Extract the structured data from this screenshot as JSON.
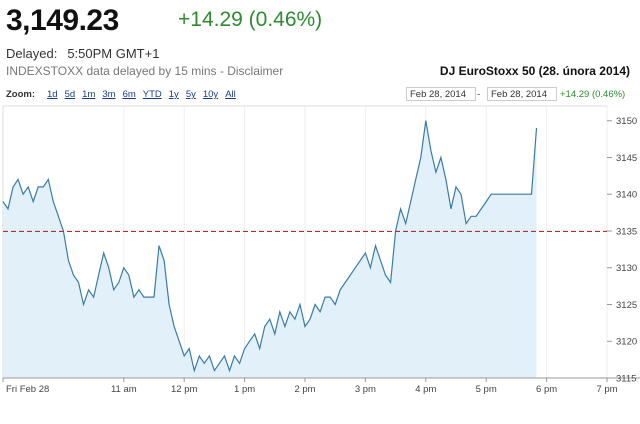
{
  "quote": {
    "price": "3,149.23",
    "change": "+14.29 (0.46%)",
    "delayed_label": "Delayed:",
    "delayed_time": "5:50PM GMT+1",
    "source_note": "INDEXSTOXX data delayed by 15 mins - ",
    "disclaimer": "Disclaimer",
    "caption": "DJ EuroStoxx 50 (28. února 2014)",
    "change_color": "#2e8b2e"
  },
  "zoom": {
    "label": "Zoom:",
    "options": [
      "1d",
      "5d",
      "1m",
      "3m",
      "6m",
      "YTD",
      "1y",
      "5y",
      "10y",
      "All"
    ],
    "range_from": "Feb 28, 2014",
    "range_separator": "-",
    "range_to": "Feb 28, 2014",
    "range_change": "+14.29 (0.46%)"
  },
  "chart_data": {
    "type": "area",
    "x_unit": "time of day",
    "x": [
      "09:00",
      "09:05",
      "09:10",
      "09:15",
      "09:20",
      "09:25",
      "09:30",
      "09:35",
      "09:40",
      "09:45",
      "09:50",
      "09:55",
      "10:00",
      "10:05",
      "10:10",
      "10:15",
      "10:20",
      "10:25",
      "10:30",
      "10:35",
      "10:40",
      "10:45",
      "10:50",
      "10:55",
      "11:00",
      "11:05",
      "11:10",
      "11:15",
      "11:20",
      "11:25",
      "11:30",
      "11:35",
      "11:40",
      "11:45",
      "11:50",
      "11:55",
      "12:00",
      "12:05",
      "12:10",
      "12:15",
      "12:20",
      "12:25",
      "12:30",
      "12:35",
      "12:40",
      "12:45",
      "12:50",
      "12:55",
      "13:00",
      "13:05",
      "13:10",
      "13:15",
      "13:20",
      "13:25",
      "13:30",
      "13:35",
      "13:40",
      "13:45",
      "13:50",
      "13:55",
      "14:00",
      "14:05",
      "14:10",
      "14:15",
      "14:20",
      "14:25",
      "14:30",
      "14:35",
      "14:40",
      "14:45",
      "14:50",
      "14:55",
      "15:00",
      "15:05",
      "15:10",
      "15:15",
      "15:20",
      "15:25",
      "15:30",
      "15:35",
      "15:40",
      "15:45",
      "15:50",
      "15:55",
      "16:00",
      "16:05",
      "16:10",
      "16:15",
      "16:20",
      "16:25",
      "16:30",
      "16:35",
      "16:40",
      "16:45",
      "16:50",
      "16:55",
      "17:00",
      "17:05",
      "17:10",
      "17:15",
      "17:20",
      "17:25",
      "17:30",
      "17:35",
      "17:40",
      "17:45",
      "17:50"
    ],
    "values": [
      3139,
      3138,
      3141,
      3142,
      3140,
      3141,
      3139,
      3141,
      3141,
      3142,
      3139,
      3137,
      3135,
      3131,
      3129,
      3128,
      3125,
      3127,
      3126,
      3129,
      3132,
      3130,
      3127,
      3128,
      3130,
      3129,
      3126,
      3127,
      3126,
      3126,
      3126,
      3133,
      3131,
      3125,
      3122,
      3120,
      3118,
      3119,
      3116,
      3118,
      3117,
      3118,
      3116,
      3117,
      3118,
      3116,
      3118,
      3117,
      3119,
      3120,
      3121,
      3119,
      3122,
      3123,
      3121,
      3124,
      3122,
      3124,
      3123,
      3125,
      3122,
      3123,
      3125,
      3124,
      3126,
      3126,
      3125,
      3127,
      3128,
      3129,
      3130,
      3131,
      3132,
      3130,
      3133,
      3131,
      3129,
      3128,
      3135,
      3138,
      3136,
      3139,
      3142,
      3145,
      3150,
      3146,
      3143,
      3145,
      3142,
      3138,
      3141,
      3140,
      3136,
      3137,
      3137,
      3138,
      3139,
      3140,
      3140,
      3140,
      3140,
      3140,
      3140,
      3140,
      3140,
      3140,
      3149
    ],
    "reference_line": 3134.94,
    "ylim": [
      3115,
      3152
    ],
    "xlim": [
      "09:00",
      "19:00"
    ],
    "y_ticks": [
      3115,
      3120,
      3125,
      3130,
      3135,
      3140,
      3145,
      3150
    ],
    "x_ticks": [
      {
        "t": "09:00",
        "label": "Fri Feb 28"
      },
      {
        "t": "11:00",
        "label": "11 am"
      },
      {
        "t": "12:00",
        "label": "12 pm"
      },
      {
        "t": "13:00",
        "label": "1 pm"
      },
      {
        "t": "14:00",
        "label": "2 pm"
      },
      {
        "t": "15:00",
        "label": "3 pm"
      },
      {
        "t": "16:00",
        "label": "4 pm"
      },
      {
        "t": "17:00",
        "label": "5 pm"
      },
      {
        "t": "18:00",
        "label": "6 pm"
      },
      {
        "t": "19:00",
        "label": "7 pm"
      }
    ],
    "grid": "vertical",
    "line_color": "#3a7ca5",
    "fill_color": "#e2f0fa",
    "reference_color": "#b03030"
  }
}
